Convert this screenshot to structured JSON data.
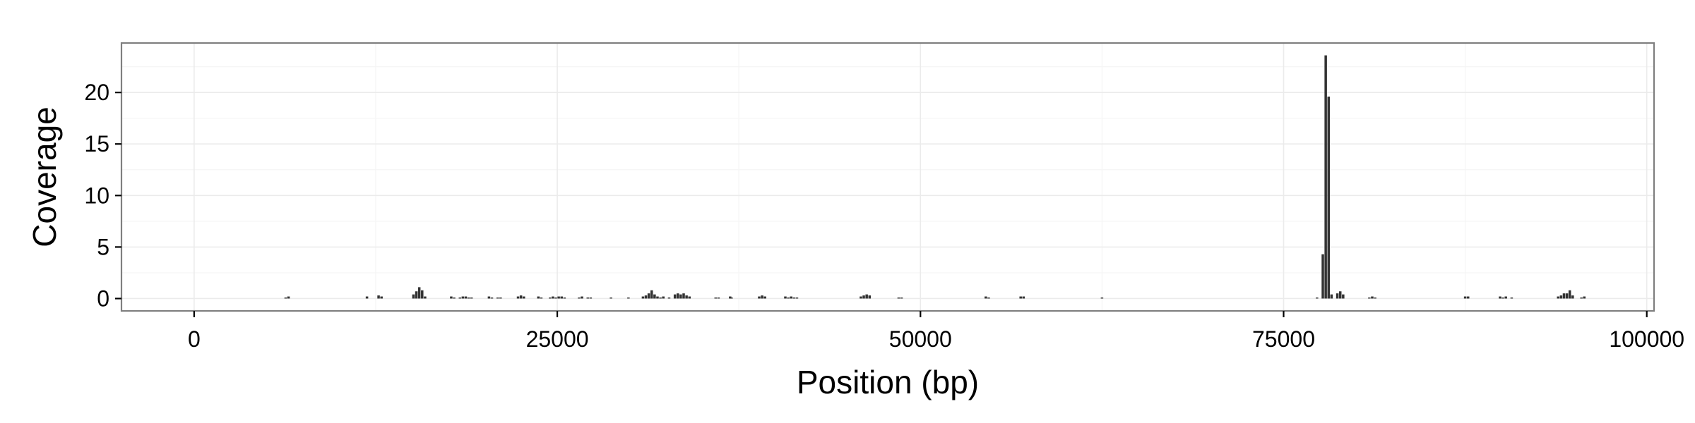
{
  "chart_data": {
    "type": "bar",
    "title": "",
    "xlabel": "Position (bp)",
    "ylabel": "Coverage",
    "xlim": [
      -5000,
      100500
    ],
    "ylim": [
      -1.2,
      24.8
    ],
    "x_ticks": [
      0,
      25000,
      50000,
      75000,
      100000
    ],
    "x_tick_labels": [
      "0",
      "25000",
      "50000",
      "75000",
      "100000"
    ],
    "y_ticks": [
      0,
      5,
      10,
      15,
      20
    ],
    "y_tick_labels": [
      "0",
      "5",
      "10",
      "15",
      "20"
    ],
    "grid": true,
    "legend": "none",
    "bin_width": 200,
    "bar_color": "#333333",
    "panel_border_color": "#7f7f7f",
    "grid_color": "#ebebeb",
    "series": [
      {
        "x": [
          6200,
          6400,
          11800,
          12600,
          12800,
          15000,
          15200,
          15400,
          15600,
          15800,
          17600,
          17800,
          18200,
          18400,
          18600,
          18800,
          19000,
          20200,
          20400,
          20800,
          21000,
          22200,
          22400,
          22600,
          23600,
          23800,
          24400,
          24600,
          24800,
          25000,
          25200,
          25400,
          26400,
          26600,
          27000,
          27200,
          28600,
          29800,
          30800,
          31000,
          31200,
          31400,
          31600,
          31800,
          32000,
          32200,
          32600,
          33000,
          33200,
          33400,
          33600,
          33800,
          34000,
          35800,
          36000,
          36800,
          36900,
          38800,
          39000,
          39200,
          40600,
          40800,
          41000,
          41200,
          41400,
          45800,
          46000,
          46200,
          46400,
          48400,
          48600,
          54400,
          54600,
          56800,
          57000,
          62400,
          77200,
          77600,
          77800,
          78000,
          78200,
          78600,
          78800,
          79000,
          80800,
          81000,
          81200,
          87400,
          87600,
          89800,
          90000,
          90200,
          90600,
          93800,
          94000,
          94200,
          94400,
          94600,
          94800,
          95400,
          95600
        ],
        "values": [
          0.1,
          0.2,
          0.2,
          0.3,
          0.2,
          0.4,
          0.7,
          1.1,
          0.8,
          0.2,
          0.2,
          0.1,
          0.1,
          0.2,
          0.2,
          0.1,
          0.1,
          0.2,
          0.1,
          0.1,
          0.1,
          0.2,
          0.3,
          0.2,
          0.2,
          0.1,
          0.1,
          0.2,
          0.1,
          0.2,
          0.2,
          0.1,
          0.1,
          0.2,
          0.1,
          0.1,
          0.1,
          0.1,
          0.2,
          0.3,
          0.5,
          0.8,
          0.4,
          0.2,
          0.1,
          0.2,
          0.1,
          0.4,
          0.5,
          0.4,
          0.5,
          0.3,
          0.2,
          0.1,
          0.1,
          0.2,
          0.1,
          0.2,
          0.3,
          0.2,
          0.2,
          0.1,
          0.2,
          0.1,
          0.1,
          0.2,
          0.3,
          0.4,
          0.3,
          0.1,
          0.1,
          0.2,
          0.1,
          0.2,
          0.2,
          0.1,
          0.1,
          4.3,
          23.6,
          19.6,
          0.4,
          0.5,
          0.7,
          0.4,
          0.1,
          0.2,
          0.1,
          0.2,
          0.2,
          0.2,
          0.1,
          0.2,
          0.1,
          0.2,
          0.3,
          0.5,
          0.5,
          0.8,
          0.3,
          0.1,
          0.2
        ]
      }
    ]
  }
}
